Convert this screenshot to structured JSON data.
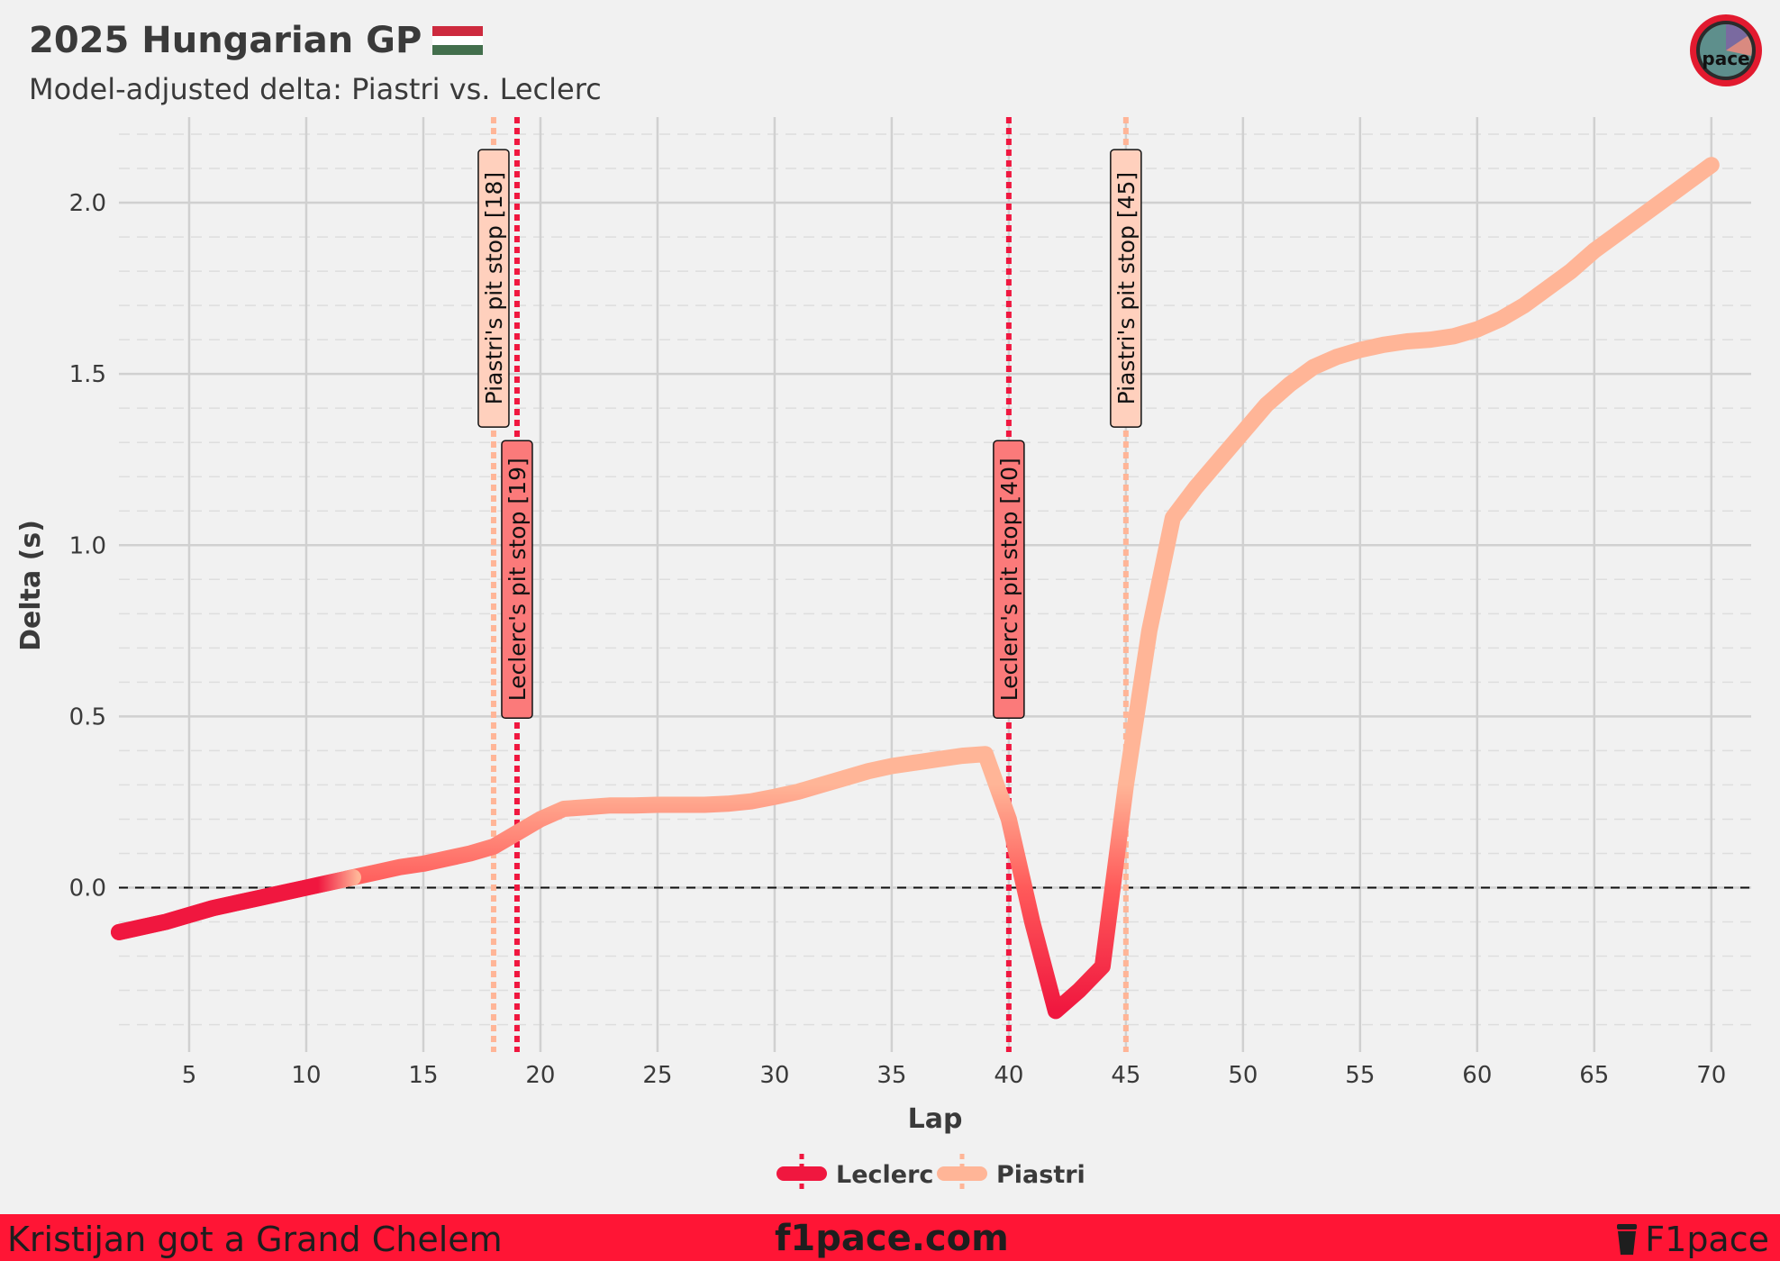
{
  "header": {
    "title": "2025 Hungarian GP",
    "subtitle": "Model-adjusted delta: Piastri vs. Leclerc",
    "flag_colors": [
      "#cd2a3e",
      "#ffffff",
      "#436f4d"
    ],
    "logo_text": "pace"
  },
  "footer": {
    "left_text": "Kristijan got a Grand Chelem",
    "center_text": "f1pace.com",
    "right_text": "F1pace",
    "background": "#ff1535"
  },
  "chart_data": {
    "type": "line",
    "title": "2025 Hungarian GP",
    "subtitle": "Model-adjusted delta: Piastri vs. Leclerc",
    "xlabel": "Lap",
    "ylabel": "Delta (s)",
    "xlim": [
      2,
      71.7
    ],
    "ylim": [
      -0.48,
      2.25
    ],
    "xticks": [
      5,
      10,
      15,
      20,
      25,
      30,
      35,
      40,
      45,
      50,
      55,
      60,
      65,
      70
    ],
    "yticks": [
      0.0,
      0.5,
      1.0,
      1.5,
      2.0
    ],
    "ytick_labels": [
      "0.0",
      "0.5",
      "1.0",
      "1.5",
      "2.0"
    ],
    "grid": true,
    "zero_line": true,
    "legend_position": "bottom-center",
    "legend": [
      {
        "name": "Leclerc",
        "color": "#f0173f"
      },
      {
        "name": "Piastri",
        "color": "#ffb597"
      }
    ],
    "colors": {
      "leclerc": "#f0173f",
      "piastri": "#ffb597"
    },
    "series": [
      {
        "name": "Delta",
        "x": [
          2,
          3,
          4,
          5,
          6,
          7,
          8,
          9,
          10,
          11,
          12,
          13,
          14,
          15,
          16,
          17,
          18,
          19,
          20,
          21,
          22,
          23,
          24,
          25,
          26,
          27,
          28,
          29,
          30,
          31,
          32,
          33,
          34,
          35,
          36,
          37,
          38,
          39,
          40,
          41,
          42,
          43,
          44,
          45,
          46,
          47,
          48,
          49,
          50,
          51,
          52,
          53,
          54,
          55,
          56,
          57,
          58,
          59,
          60,
          61,
          62,
          63,
          64,
          65,
          66,
          67,
          68,
          69,
          70
        ],
        "y": [
          -0.13,
          -0.115,
          -0.1,
          -0.08,
          -0.06,
          -0.045,
          -0.03,
          -0.015,
          0.0,
          0.015,
          0.03,
          0.045,
          0.06,
          0.07,
          0.085,
          0.1,
          0.12,
          0.16,
          0.2,
          0.23,
          0.235,
          0.24,
          0.24,
          0.242,
          0.242,
          0.242,
          0.245,
          0.252,
          0.265,
          0.28,
          0.3,
          0.32,
          0.34,
          0.355,
          0.365,
          0.375,
          0.385,
          0.39,
          0.2,
          -0.1,
          -0.36,
          -0.3,
          -0.23,
          0.3,
          0.75,
          1.08,
          1.17,
          1.25,
          1.33,
          1.41,
          1.47,
          1.52,
          1.55,
          1.57,
          1.585,
          1.595,
          1.6,
          1.61,
          1.63,
          1.66,
          1.7,
          1.75,
          1.8,
          1.86,
          1.91,
          1.96,
          2.01,
          2.06,
          2.11
        ]
      }
    ],
    "annotations": [
      {
        "lap": 18,
        "text": "Piastri's pit stop [18]",
        "driver": "piastri"
      },
      {
        "lap": 19,
        "text": "Leclerc's pit stop [19]",
        "driver": "leclerc"
      },
      {
        "lap": 40,
        "text": "Leclerc's pit stop [40]",
        "driver": "leclerc"
      },
      {
        "lap": 45,
        "text": "Piastri's pit stop [45]",
        "driver": "piastri"
      }
    ]
  }
}
